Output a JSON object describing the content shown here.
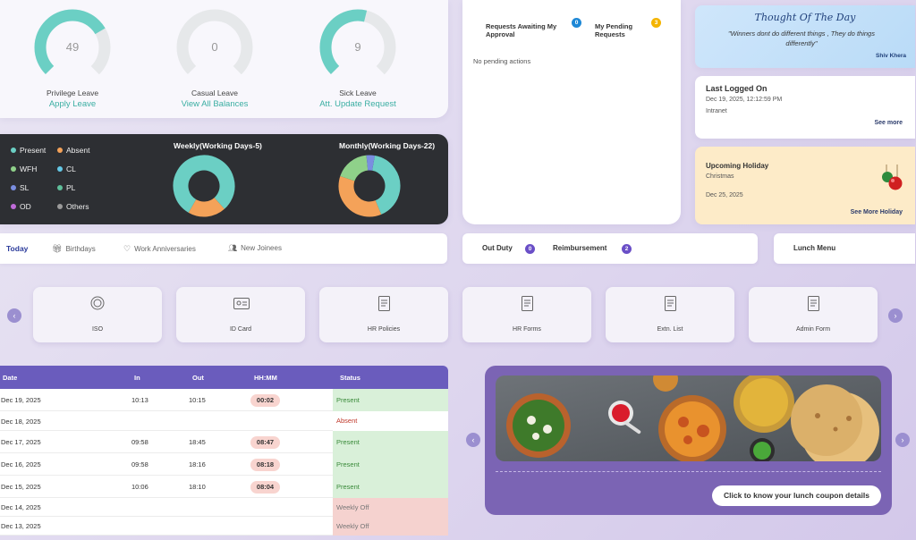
{
  "leave": {
    "items": [
      {
        "value": "49",
        "label": "Privilege Leave",
        "link": "Apply Leave",
        "fraction": 0.72,
        "color": "#6bcfc4"
      },
      {
        "value": "0",
        "label": "Casual Leave",
        "link": "View All Balances",
        "fraction": 0.0,
        "color": "#6bcfc4"
      },
      {
        "value": "9",
        "label": "Sick Leave",
        "link": "Att. Update Request",
        "fraction": 0.55,
        "color": "#6bcfc4"
      }
    ]
  },
  "attendance_chart": {
    "legend": [
      {
        "label": "Present",
        "color": "#6bcfc4"
      },
      {
        "label": "Absent",
        "color": "#f4a259"
      },
      {
        "label": "WFH",
        "color": "#8fd18a"
      },
      {
        "label": "CL",
        "color": "#64c8e6"
      },
      {
        "label": "SL",
        "color": "#7a8ee0"
      },
      {
        "label": "PL",
        "color": "#5fbf9a"
      },
      {
        "label": "OD",
        "color": "#c06bd9"
      },
      {
        "label": "Others",
        "color": "#9a9a9a"
      }
    ],
    "weekly_title": "Weekly(Working Days-5)",
    "monthly_title": "Monthly(Working Days-22)"
  },
  "chart_data": [
    {
      "type": "pie",
      "title": "Weekly(Working Days-5)",
      "categories": [
        "Present",
        "Absent"
      ],
      "values": [
        4,
        1
      ]
    },
    {
      "type": "pie",
      "title": "Monthly(Working Days-22)",
      "categories": [
        "Present",
        "Absent",
        "WFH",
        "SL"
      ],
      "values": [
        9,
        8,
        4,
        1
      ]
    }
  ],
  "requests": {
    "awaiting_label": "Requests Awaiting My Approval",
    "awaiting_count": "0",
    "pending_label": "My Pending Requests",
    "pending_count": "3",
    "empty_text": "No pending actions"
  },
  "thought": {
    "title": "Thought Of The Day",
    "quote": "\"Winners dont do different things , They do things differently\"",
    "author": "Shiv Khera"
  },
  "last_logged": {
    "title": "Last Logged On",
    "datetime": "Dec 19, 2025, 12:12:59 PM",
    "source": "Intranet",
    "link": "See more"
  },
  "holiday": {
    "title": "Upcoming Holiday",
    "name": "Christmas",
    "date": "Dec 25, 2025",
    "link": "See More Holiday"
  },
  "today_tabs": {
    "today": "Today",
    "birthdays": "Birthdays",
    "anniversaries": "Work Anniversaries",
    "joinees": "New Joinees"
  },
  "duty": {
    "out_duty_label": "Out Duty",
    "out_duty_count": "0",
    "reimbursement_label": "Reimbursement",
    "reimbursement_count": "2"
  },
  "lunch_menu_label": "Lunch Menu",
  "quick_links": [
    "ISO",
    "ID Card",
    "HR Policies",
    "HR Forms",
    "Extn. List",
    "Admin Form"
  ],
  "attendance_table": {
    "headers": {
      "date": "Date",
      "in": "In",
      "out": "Out",
      "hhmm": "HH:MM",
      "status": "Status"
    },
    "rows": [
      {
        "date": "Dec 19, 2025",
        "in": "10:13",
        "out": "10:15",
        "hhmm": "00:02",
        "status": "Present"
      },
      {
        "date": "Dec 18, 2025",
        "in": "",
        "out": "",
        "hhmm": "",
        "status": "Absent"
      },
      {
        "date": "Dec 17, 2025",
        "in": "09:58",
        "out": "18:45",
        "hhmm": "08:47",
        "status": "Present"
      },
      {
        "date": "Dec 16, 2025",
        "in": "09:58",
        "out": "18:16",
        "hhmm": "08:18",
        "status": "Present"
      },
      {
        "date": "Dec 15, 2025",
        "in": "10:06",
        "out": "18:10",
        "hhmm": "08:04",
        "status": "Present"
      },
      {
        "date": "Dec 14, 2025",
        "in": "",
        "out": "",
        "hhmm": "",
        "status": "Weekly Off"
      },
      {
        "date": "Dec 13, 2025",
        "in": "",
        "out": "",
        "hhmm": "",
        "status": "Weekly Off"
      }
    ]
  },
  "lunch": {
    "button": "Click to know your lunch coupon details"
  }
}
